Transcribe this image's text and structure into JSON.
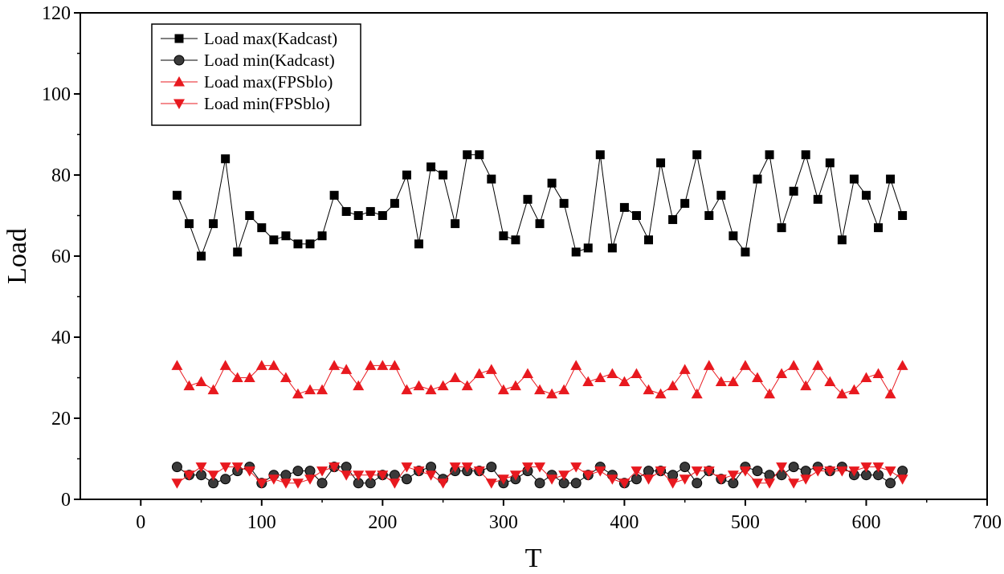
{
  "chart_data": {
    "type": "line",
    "title": "",
    "xlabel": "T",
    "ylabel": "Load",
    "xlim": [
      -50,
      700
    ],
    "ylim": [
      0,
      120
    ],
    "xticks": [
      0,
      100,
      200,
      300,
      400,
      500,
      600,
      700
    ],
    "yticks": [
      0,
      20,
      40,
      60,
      80,
      100,
      120
    ],
    "grid": false,
    "legend_position": "top-left",
    "x": [
      30,
      40,
      50,
      60,
      70,
      80,
      90,
      100,
      110,
      120,
      130,
      140,
      150,
      160,
      170,
      180,
      190,
      200,
      210,
      220,
      230,
      240,
      250,
      260,
      270,
      280,
      290,
      300,
      310,
      320,
      330,
      340,
      350,
      360,
      370,
      380,
      390,
      400,
      410,
      420,
      430,
      440,
      450,
      460,
      470,
      480,
      490,
      500,
      510,
      520,
      530,
      540,
      550,
      560,
      570,
      580,
      590,
      600,
      610,
      620,
      630
    ],
    "series": [
      {
        "name": "Load max(Kadcast)",
        "color": "#000000",
        "marker": "square",
        "values": [
          75,
          68,
          60,
          68,
          84,
          61,
          70,
          67,
          64,
          65,
          63,
          63,
          65,
          75,
          71,
          70,
          71,
          70,
          73,
          80,
          63,
          82,
          80,
          68,
          85,
          85,
          79,
          65,
          64,
          74,
          68,
          78,
          73,
          61,
          62,
          85,
          62,
          72,
          70,
          64,
          83,
          69,
          73,
          85,
          70,
          75,
          65,
          61,
          79,
          85,
          67,
          76,
          85,
          74,
          83,
          64,
          79,
          75,
          67,
          79,
          70
        ]
      },
      {
        "name": "Load min(Kadcast)",
        "color": "#000000",
        "marker": "circle",
        "values": [
          8,
          6,
          6,
          4,
          5,
          7,
          8,
          4,
          6,
          6,
          7,
          7,
          4,
          8,
          8,
          4,
          4,
          6,
          6,
          5,
          7,
          8,
          5,
          7,
          7,
          7,
          8,
          4,
          5,
          7,
          4,
          6,
          4,
          4,
          6,
          8,
          6,
          4,
          5,
          7,
          7,
          6,
          8,
          4,
          7,
          5,
          4,
          8,
          7,
          6,
          6,
          8,
          7,
          8,
          7,
          8,
          6,
          6,
          6,
          4,
          7
        ]
      },
      {
        "name": "Load max(FPSblo)",
        "color": "#e8191f",
        "marker": "triangle-up",
        "values": [
          33,
          28,
          29,
          27,
          33,
          30,
          30,
          33,
          33,
          30,
          26,
          27,
          27,
          33,
          32,
          28,
          33,
          33,
          33,
          27,
          28,
          27,
          28,
          30,
          28,
          31,
          32,
          27,
          28,
          31,
          27,
          26,
          27,
          33,
          29,
          30,
          31,
          29,
          31,
          27,
          26,
          28,
          32,
          26,
          33,
          29,
          29,
          33,
          30,
          26,
          31,
          33,
          28,
          33,
          29,
          26,
          27,
          30,
          31,
          26,
          33
        ]
      },
      {
        "name": "Load min(FPSblo)",
        "color": "#e8191f",
        "marker": "triangle-down",
        "values": [
          4,
          6,
          8,
          6,
          8,
          8,
          7,
          4,
          5,
          4,
          4,
          5,
          7,
          8,
          6,
          6,
          6,
          6,
          4,
          8,
          7,
          6,
          4,
          8,
          8,
          7,
          4,
          5,
          6,
          8,
          8,
          5,
          6,
          8,
          6,
          7,
          5,
          4,
          7,
          5,
          7,
          4,
          5,
          7,
          7,
          5,
          6,
          7,
          4,
          4,
          8,
          4,
          5,
          7,
          7,
          7,
          7,
          8,
          8,
          7,
          5
        ]
      }
    ]
  }
}
